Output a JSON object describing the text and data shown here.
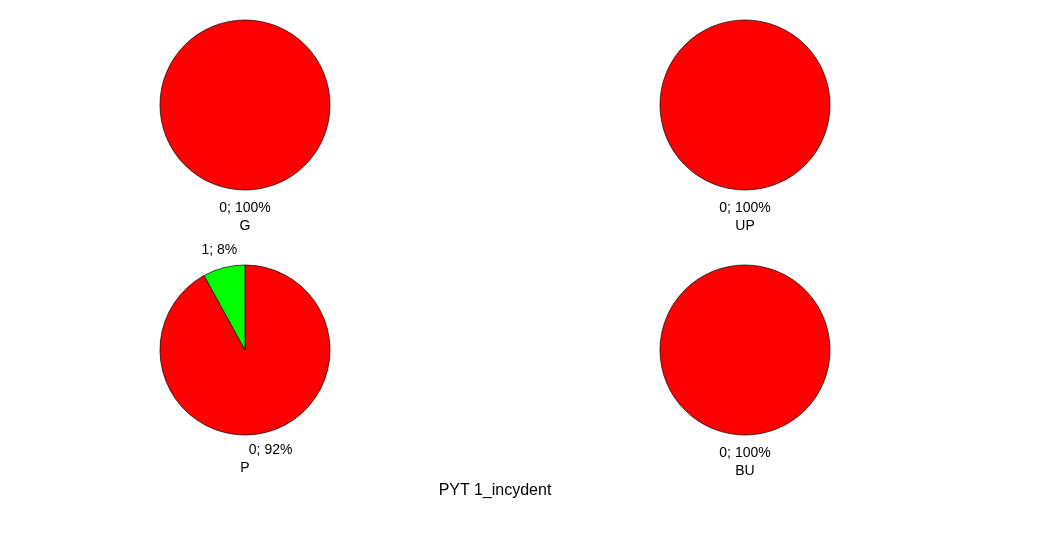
{
  "chart_data": [
    {
      "type": "pie",
      "title": "G",
      "categories": [
        "0"
      ],
      "values": [
        100
      ],
      "colors": [
        "#ff0000"
      ],
      "value_labels": [
        "100%"
      ]
    },
    {
      "type": "pie",
      "title": "UP",
      "categories": [
        "0"
      ],
      "values": [
        100
      ],
      "colors": [
        "#ff0000"
      ],
      "value_labels": [
        "100%"
      ]
    },
    {
      "type": "pie",
      "title": "P",
      "categories": [
        "0",
        "1"
      ],
      "values": [
        92,
        8
      ],
      "colors": [
        "#ff0000",
        "#00ff00"
      ],
      "value_labels": [
        "92%",
        "8%"
      ]
    },
    {
      "type": "pie",
      "title": "BU",
      "categories": [
        "0"
      ],
      "values": [
        100
      ],
      "colors": [
        "#ff0000"
      ],
      "value_labels": [
        "100%"
      ],
      "annotations": [
        "PYT 1_incydent"
      ]
    }
  ]
}
